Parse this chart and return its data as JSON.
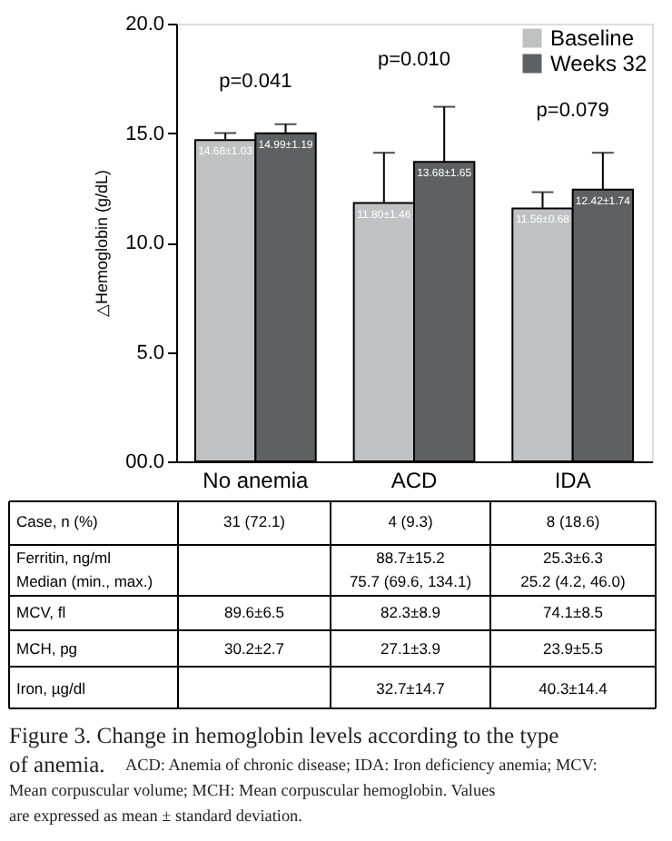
{
  "chart_data": {
    "type": "bar",
    "ylabel": "△Hemoglobin (g/dL)",
    "categories": [
      "No anemia",
      "ACD",
      "IDA"
    ],
    "series": [
      {
        "name": "Baseline",
        "color": "#c0c1c3",
        "values": [
          14.68,
          11.8,
          11.56
        ],
        "errors": [
          [
            14.68,
            15.0
          ],
          [
            11.8,
            14.1
          ],
          [
            11.56,
            12.3
          ]
        ],
        "value_labels": [
          "14.68±1.03",
          "11.80±1.46",
          "11.56±0.68"
        ]
      },
      {
        "name": "Weeks 32",
        "color": "#5f6062",
        "values": [
          14.99,
          13.68,
          12.42
        ],
        "errors": [
          [
            14.99,
            15.4
          ],
          [
            13.68,
            16.2
          ],
          [
            12.42,
            14.1
          ]
        ],
        "value_labels": [
          "14.99±1.19",
          "13.68±1.65",
          "12.42±1.74"
        ]
      }
    ],
    "ylim": [
      0,
      20
    ],
    "yticks": [
      {
        "value": 0,
        "label": "00.0"
      },
      {
        "value": 5,
        "label": "5.0"
      },
      {
        "value": 10,
        "label": "10.0"
      },
      {
        "value": 15,
        "label": "15.0"
      },
      {
        "value": 20,
        "label": "20.0"
      }
    ],
    "grid": false,
    "legend": "top right",
    "annotations": [
      "p=0.041",
      "p=0.010",
      "p=0.079",
      "Case, n (%)",
      "31 (72.1)",
      "4 (9.3)",
      "8 (18.6)",
      "Ferritin, ng/ml",
      "Median (min., max.)",
      "88.7±15.2",
      "75.7 (69.6, 134.1)",
      "25.3±6.3",
      "25.2 (4.2, 46.0)",
      "MCV, fl",
      "89.6±6.5",
      "82.3±8.9",
      "74.1±8.5",
      "MCH, pg",
      "30.2±2.7",
      "27.1±3.9",
      "23.9±5.5",
      "Iron, µg/dl",
      "32.7±14.7",
      "40.3±14.4",
      "Figure 3. Change in hemoglobin levels according to the type of anemia.",
      "ACD: Anemia of chronic disease; IDA: Iron deficiency anemia; MCV: Mean corpuscular volume; MCH: Mean corpuscular hemoglobin. Values are expressed as mean ± standard deviation."
    ]
  }
}
